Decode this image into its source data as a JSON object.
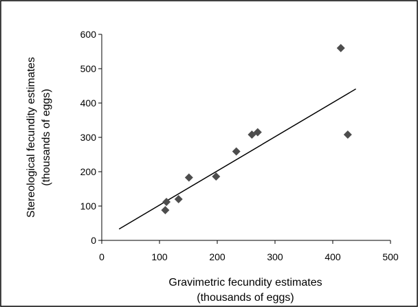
{
  "chart_data": {
    "type": "scatter",
    "xlabel": [
      "Gravimetric fecundity estimates",
      "(thousands of eggs)"
    ],
    "ylabel": [
      "Stereological fecundity estimates",
      "(thousands of eggs)"
    ],
    "xlim": [
      0,
      500
    ],
    "ylim": [
      0,
      600
    ],
    "xticks": [
      0,
      100,
      200,
      300,
      400,
      500
    ],
    "yticks": [
      0,
      100,
      200,
      300,
      400,
      500,
      600
    ],
    "grid": false,
    "legend": "none",
    "marker": "diamond",
    "marker_color": "#4d4d4d",
    "series": [
      {
        "points": [
          {
            "x": 110,
            "y": 88
          },
          {
            "x": 112,
            "y": 112
          },
          {
            "x": 133,
            "y": 120
          },
          {
            "x": 151,
            "y": 183
          },
          {
            "x": 198,
            "y": 186
          },
          {
            "x": 233,
            "y": 259
          },
          {
            "x": 260,
            "y": 308
          },
          {
            "x": 270,
            "y": 315
          },
          {
            "x": 414,
            "y": 560
          },
          {
            "x": 426,
            "y": 308
          }
        ]
      }
    ],
    "trendline": {
      "type": "linear",
      "x": [
        30,
        440
      ],
      "y": [
        33,
        441
      ]
    }
  }
}
